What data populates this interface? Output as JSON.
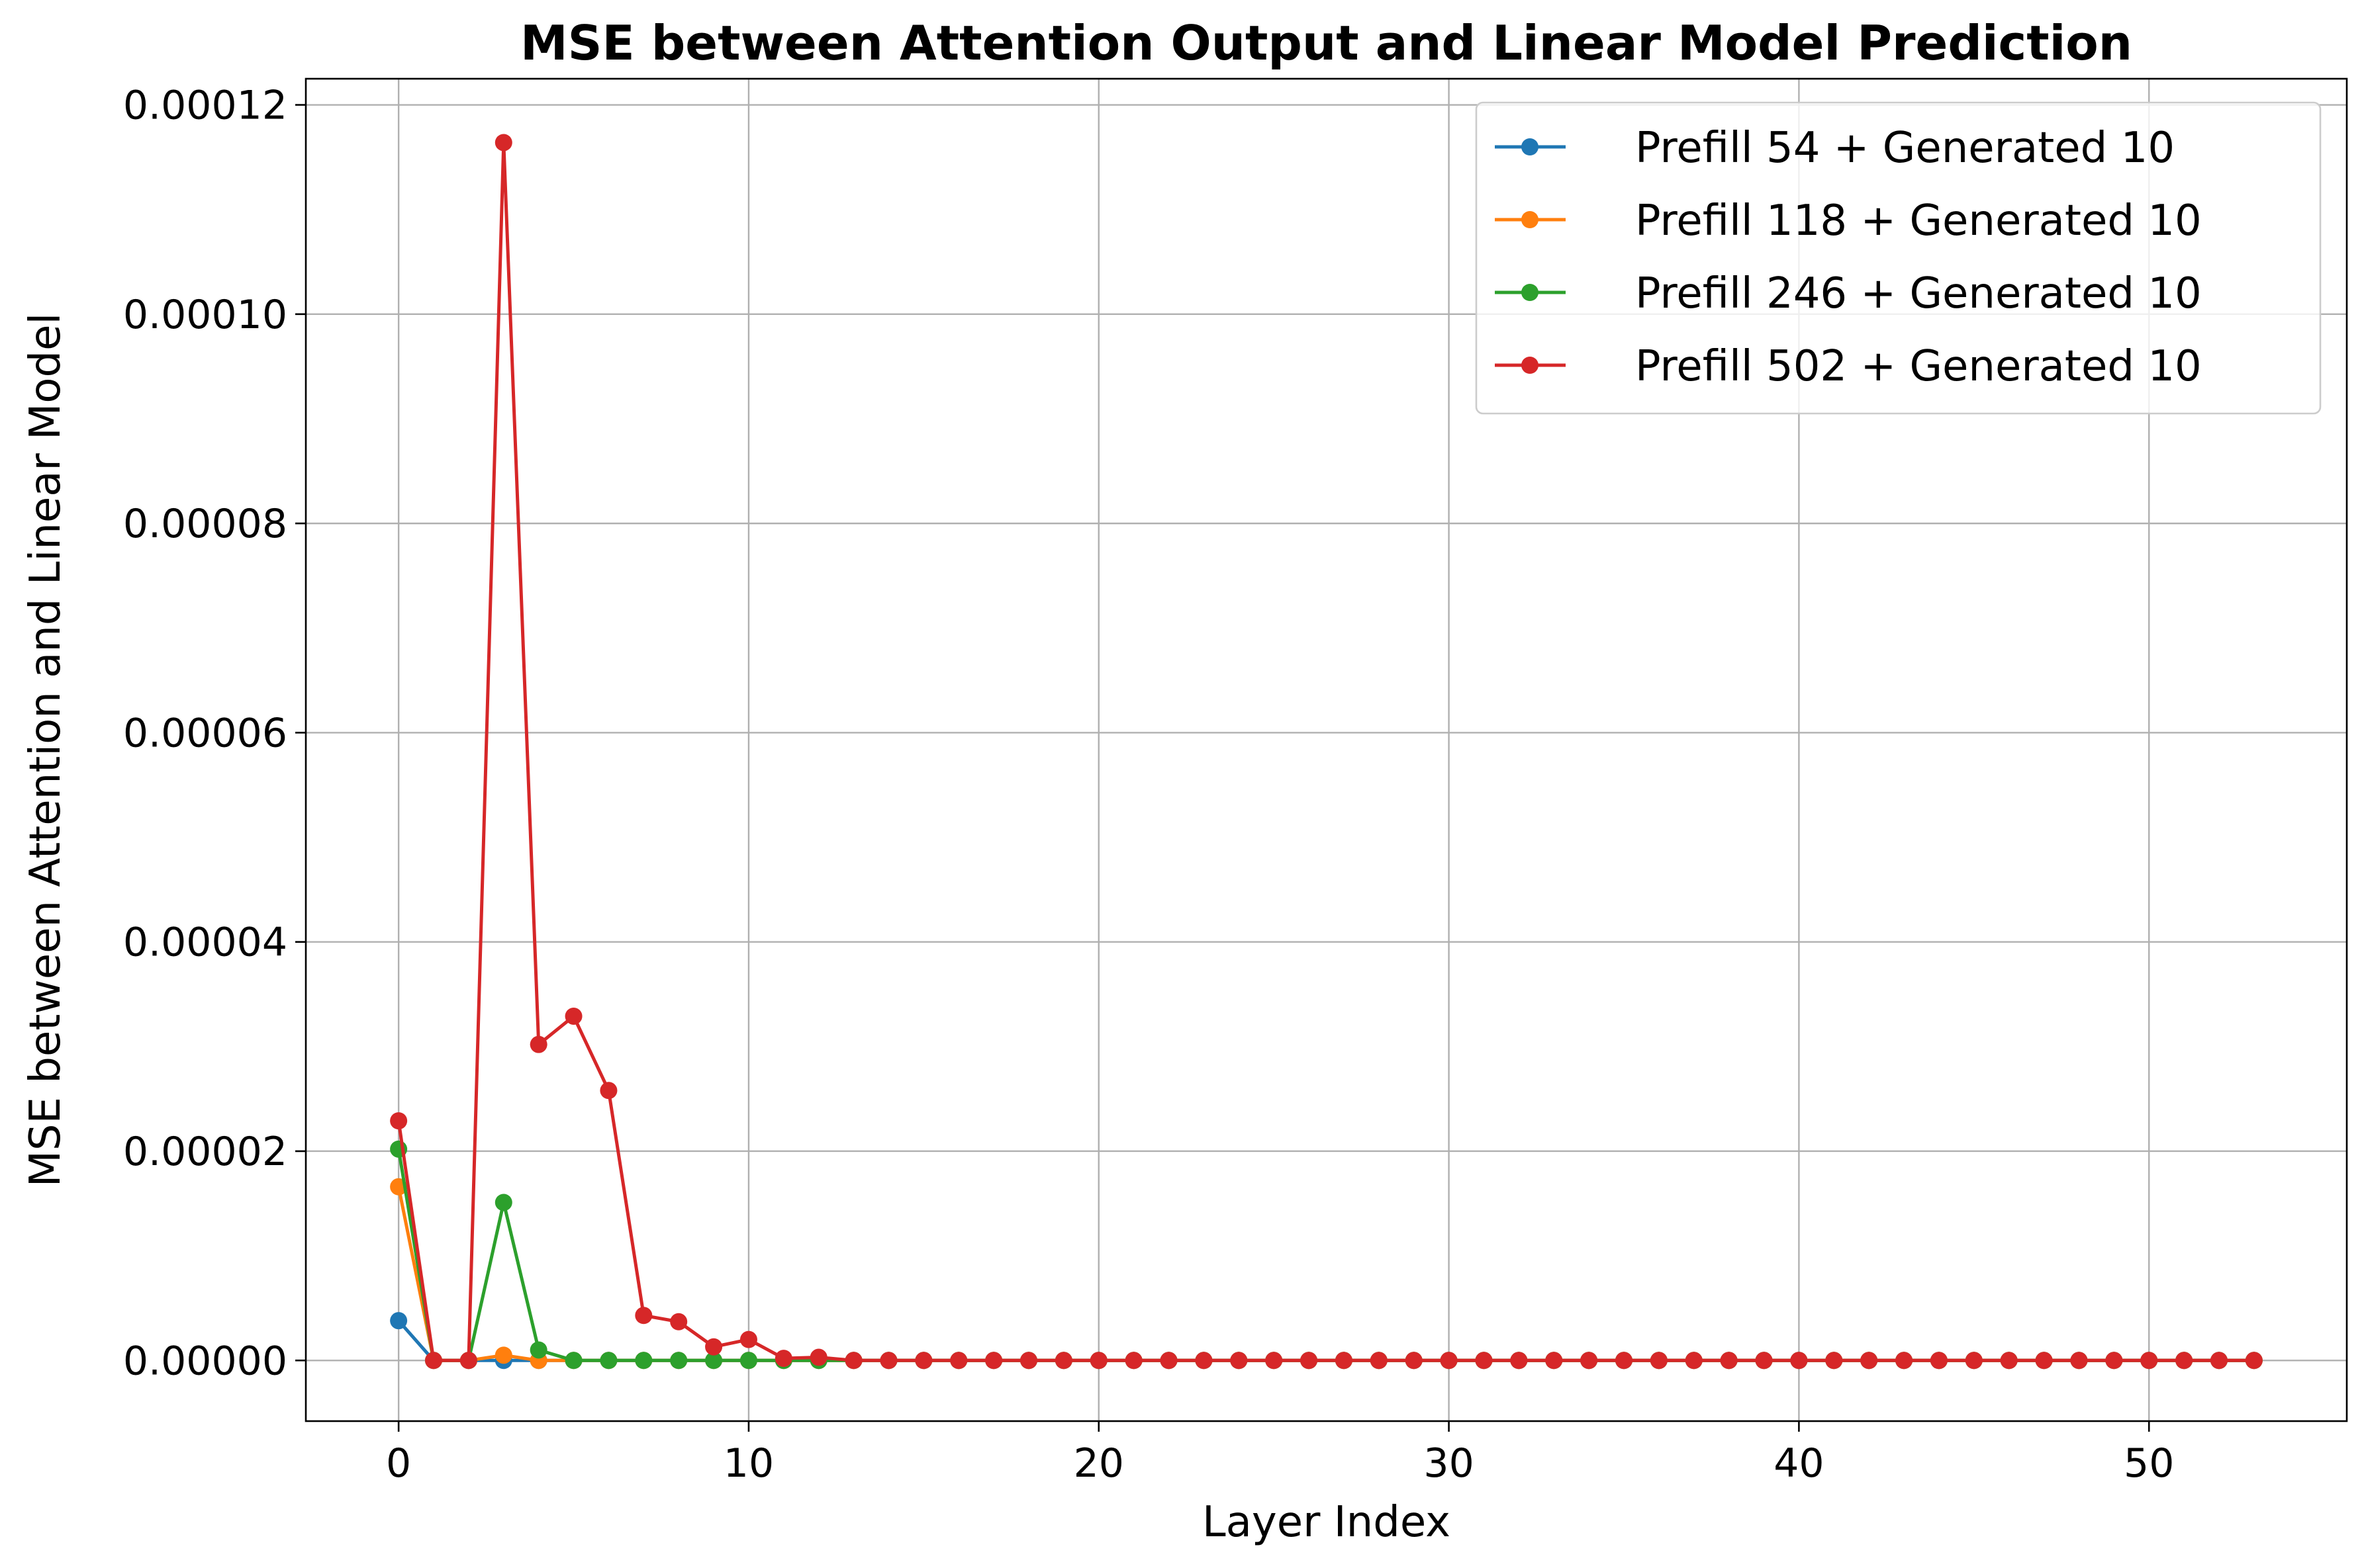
{
  "chart_data": {
    "type": "line",
    "title": "MSE between Attention Output and Linear Model Prediction",
    "xlabel": "Layer Index",
    "ylabel": "MSE between Attention and Linear Model",
    "xlim": [
      -2.65,
      55.65
    ],
    "ylim": [
      -5.8e-06,
      0.0001225
    ],
    "xticks": [
      0,
      10,
      20,
      30,
      40,
      50
    ],
    "xtick_labels": [
      "0",
      "10",
      "20",
      "30",
      "40",
      "50"
    ],
    "yticks": [
      0,
      2e-05,
      4e-05,
      6e-05,
      8e-05,
      0.0001,
      0.00012
    ],
    "ytick_labels": [
      "0.00000",
      "0.00002",
      "0.00004",
      "0.00006",
      "0.00008",
      "0.00010",
      "0.00012"
    ],
    "grid": true,
    "legend_position": "top-right",
    "series": [
      {
        "name": "Prefill 54 + Generated 10",
        "color": "#1f77b4",
        "x": [
          0,
          1,
          2,
          3,
          4,
          5,
          6,
          7,
          8,
          9,
          10,
          11,
          12,
          13,
          14,
          15,
          16,
          17,
          18,
          19,
          20,
          21,
          22,
          23,
          24,
          25,
          26,
          27,
          28,
          29,
          30,
          31,
          32,
          33,
          34,
          35,
          36,
          37,
          38,
          39,
          40,
          41,
          42,
          43,
          44,
          45,
          46,
          47,
          48,
          49,
          50,
          51,
          52,
          53
        ],
        "y": [
          3.8e-06,
          0,
          0,
          0,
          0,
          0,
          0,
          0,
          0,
          0,
          0,
          0,
          0,
          0,
          0,
          0,
          0,
          0,
          0,
          0,
          0,
          0,
          0,
          0,
          0,
          0,
          0,
          0,
          0,
          0,
          0,
          0,
          0,
          0,
          0,
          0,
          0,
          0,
          0,
          0,
          0,
          0,
          0,
          0,
          0,
          0,
          0,
          0,
          0,
          0,
          0,
          0,
          0,
          0
        ]
      },
      {
        "name": "Prefill 118 + Generated 10",
        "color": "#ff7f0e",
        "x": [
          0,
          1,
          2,
          3,
          4,
          5,
          6,
          7,
          8,
          9,
          10,
          11,
          12,
          13,
          14,
          15,
          16,
          17,
          18,
          19,
          20,
          21,
          22,
          23,
          24,
          25,
          26,
          27,
          28,
          29,
          30,
          31,
          32,
          33,
          34,
          35,
          36,
          37,
          38,
          39,
          40,
          41,
          42,
          43,
          44,
          45,
          46,
          47,
          48,
          49,
          50,
          51,
          52,
          53
        ],
        "y": [
          1.66e-05,
          0,
          0,
          5e-07,
          0,
          0,
          0,
          0,
          0,
          0,
          0,
          0,
          0,
          0,
          0,
          0,
          0,
          0,
          0,
          0,
          0,
          0,
          0,
          0,
          0,
          0,
          0,
          0,
          0,
          0,
          0,
          0,
          0,
          0,
          0,
          0,
          0,
          0,
          0,
          0,
          0,
          0,
          0,
          0,
          0,
          0,
          0,
          0,
          0,
          0,
          0,
          0,
          0,
          0
        ]
      },
      {
        "name": "Prefill 246 + Generated 10",
        "color": "#2ca02c",
        "x": [
          0,
          1,
          2,
          3,
          4,
          5,
          6,
          7,
          8,
          9,
          10,
          11,
          12,
          13,
          14,
          15,
          16,
          17,
          18,
          19,
          20,
          21,
          22,
          23,
          24,
          25,
          26,
          27,
          28,
          29,
          30,
          31,
          32,
          33,
          34,
          35,
          36,
          37,
          38,
          39,
          40,
          41,
          42,
          43,
          44,
          45,
          46,
          47,
          48,
          49,
          50,
          51,
          52,
          53
        ],
        "y": [
          2.02e-05,
          0,
          0,
          1.51e-05,
          1e-06,
          0,
          0,
          0,
          0,
          0,
          0,
          0,
          0,
          0,
          0,
          0,
          0,
          0,
          0,
          0,
          0,
          0,
          0,
          0,
          0,
          0,
          0,
          0,
          0,
          0,
          0,
          0,
          0,
          0,
          0,
          0,
          0,
          0,
          0,
          0,
          0,
          0,
          0,
          0,
          0,
          0,
          0,
          0,
          0,
          0,
          0,
          0,
          0,
          0
        ]
      },
      {
        "name": "Prefill 502 + Generated 10",
        "color": "#d62728",
        "x": [
          0,
          1,
          2,
          3,
          4,
          5,
          6,
          7,
          8,
          9,
          10,
          11,
          12,
          13,
          14,
          15,
          16,
          17,
          18,
          19,
          20,
          21,
          22,
          23,
          24,
          25,
          26,
          27,
          28,
          29,
          30,
          31,
          32,
          33,
          34,
          35,
          36,
          37,
          38,
          39,
          40,
          41,
          42,
          43,
          44,
          45,
          46,
          47,
          48,
          49,
          50,
          51,
          52,
          53
        ],
        "y": [
          2.29e-05,
          0,
          0,
          0.0001164,
          3.02e-05,
          3.29e-05,
          2.58e-05,
          4.3e-06,
          3.7e-06,
          1.3e-06,
          2e-06,
          2e-07,
          3e-07,
          0,
          0,
          0,
          0,
          0,
          0,
          0,
          0,
          0,
          0,
          0,
          0,
          0,
          0,
          0,
          0,
          0,
          0,
          0,
          0,
          0,
          0,
          0,
          0,
          0,
          0,
          0,
          0,
          0,
          0,
          0,
          0,
          0,
          0,
          0,
          0,
          0,
          0,
          0,
          0,
          0
        ]
      }
    ]
  }
}
